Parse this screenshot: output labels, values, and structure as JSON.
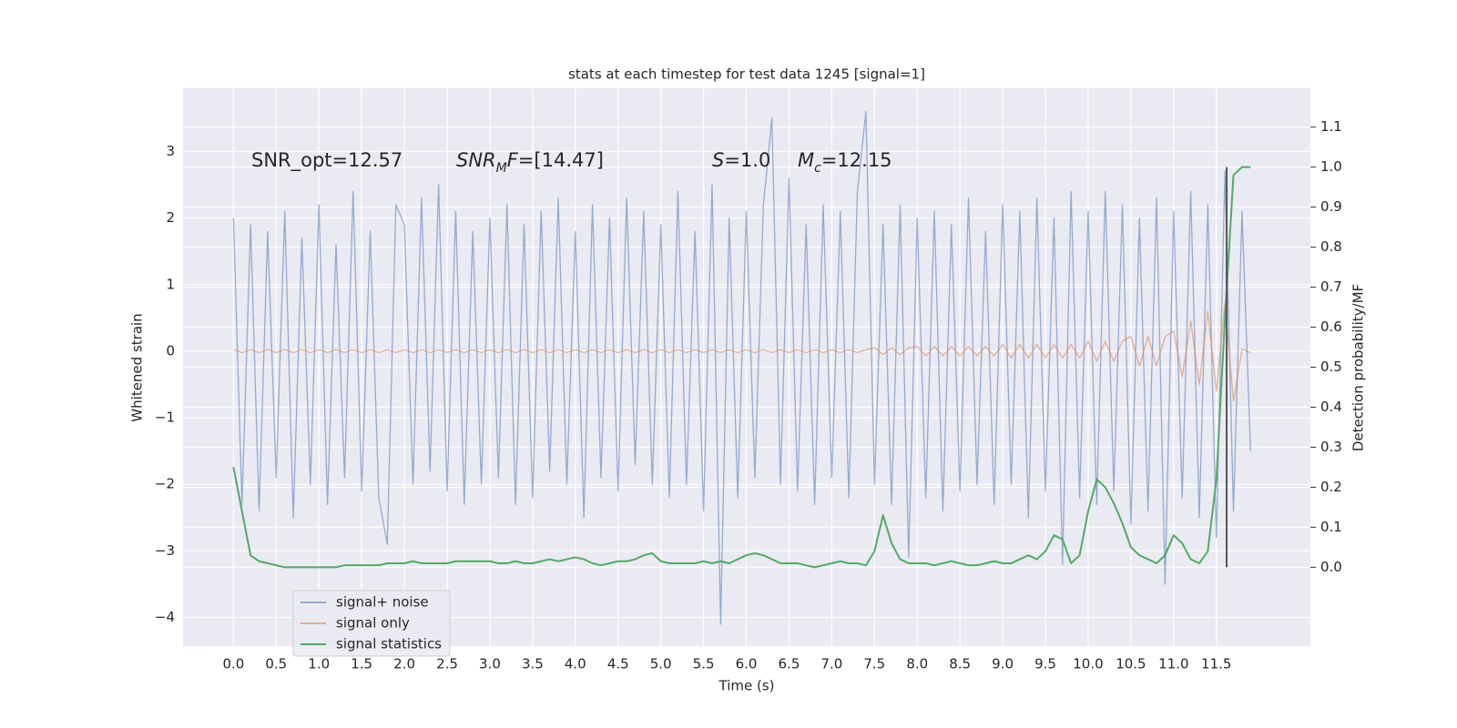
{
  "chart_data": {
    "type": "line",
    "title": "stats at each timestep for test data 1245 [signal=1]",
    "xlabel": "Time (s)",
    "ylabel": "Whitened strain",
    "y2label": "Detection probability/MF",
    "x": [
      0,
      0.1,
      0.2,
      0.3,
      0.4,
      0.5,
      0.6,
      0.7,
      0.8,
      0.9,
      1,
      1.1,
      1.2,
      1.3,
      1.4,
      1.5,
      1.6,
      1.7,
      1.8,
      1.9,
      2,
      2.1,
      2.2,
      2.3,
      2.4,
      2.5,
      2.6,
      2.7,
      2.8,
      2.9,
      3,
      3.1,
      3.2,
      3.3,
      3.4,
      3.5,
      3.6,
      3.7,
      3.8,
      3.9,
      4,
      4.1,
      4.2,
      4.3,
      4.4,
      4.5,
      4.6,
      4.7,
      4.8,
      4.9,
      5,
      5.1,
      5.2,
      5.3,
      5.4,
      5.5,
      5.6,
      5.7,
      5.8,
      5.9,
      6,
      6.1,
      6.2,
      6.3,
      6.4,
      6.5,
      6.6,
      6.7,
      6.8,
      6.9,
      7,
      7.1,
      7.2,
      7.3,
      7.4,
      7.5,
      7.6,
      7.7,
      7.8,
      7.9,
      8,
      8.1,
      8.2,
      8.3,
      8.4,
      8.5,
      8.6,
      8.7,
      8.8,
      8.9,
      9,
      9.1,
      9.2,
      9.3,
      9.4,
      9.5,
      9.6,
      9.7,
      9.8,
      9.9,
      10,
      10.1,
      10.2,
      10.3,
      10.4,
      10.5,
      10.6,
      10.7,
      10.8,
      10.9,
      11,
      11.1,
      11.2,
      11.3,
      11.4,
      11.5,
      11.6,
      11.7,
      11.8,
      11.9
    ],
    "series": [
      {
        "name": "signal+ noise",
        "color": "#4c72b0",
        "opacity": 0.55,
        "values": [
          2.0,
          -2.3,
          1.9,
          -2.4,
          1.8,
          -1.9,
          2.1,
          -2.5,
          1.7,
          -2.0,
          2.2,
          -2.3,
          1.6,
          -1.9,
          2.4,
          -2.1,
          1.8,
          -2.2,
          -2.9,
          2.2,
          1.9,
          -2.0,
          2.3,
          -1.8,
          2.5,
          -2.1,
          2.1,
          -2.3,
          1.8,
          -2.0,
          2.0,
          -1.9,
          2.2,
          -2.3,
          1.9,
          -2.2,
          2.1,
          -1.8,
          2.3,
          -2.0,
          1.8,
          -2.5,
          2.2,
          -1.9,
          2.0,
          -2.1,
          2.3,
          -1.7,
          2.1,
          -2.0,
          1.9,
          -2.2,
          2.4,
          -2.0,
          1.8,
          -2.4,
          2.5,
          -4.1,
          2.0,
          -2.2,
          2.1,
          -1.9,
          2.2,
          3.5,
          -2.0,
          2.6,
          -2.1,
          1.9,
          -2.3,
          2.2,
          -1.9,
          2.1,
          -2.2,
          2.4,
          3.6,
          -2.0,
          1.9,
          -2.3,
          2.2,
          -3.1,
          2.0,
          -2.2,
          2.1,
          -2.4,
          1.9,
          -2.1,
          2.3,
          -2.0,
          1.8,
          -2.3,
          2.2,
          -2.0,
          2.1,
          -2.5,
          2.3,
          -2.1,
          2.0,
          -3.2,
          2.4,
          -2.2,
          2.1,
          -2.3,
          2.4,
          -2.1,
          2.2,
          -2.6,
          2.0,
          -2.4,
          2.3,
          -3.5,
          2.1,
          -2.2,
          2.4,
          -2.5,
          2.2,
          -2.8,
          2.7,
          -2.4,
          2.1,
          -1.5
        ]
      },
      {
        "name": "signal only",
        "color": "#dd8452",
        "opacity": 0.6,
        "values": [
          0.02,
          -0.02,
          0.02,
          -0.02,
          0.02,
          -0.02,
          0.02,
          -0.02,
          0.02,
          -0.02,
          0.02,
          -0.02,
          0.02,
          -0.02,
          0.02,
          -0.02,
          0.02,
          -0.02,
          0.02,
          -0.02,
          0.02,
          -0.02,
          0.02,
          -0.02,
          0.02,
          -0.02,
          0.02,
          -0.02,
          0.02,
          -0.02,
          0.02,
          -0.02,
          0.02,
          -0.02,
          0.02,
          -0.02,
          0.02,
          -0.02,
          0.02,
          -0.02,
          0.02,
          -0.02,
          0.02,
          -0.02,
          0.02,
          -0.02,
          0.02,
          -0.02,
          0.02,
          -0.02,
          0.02,
          -0.02,
          0.02,
          -0.02,
          0.02,
          -0.02,
          0.02,
          -0.02,
          0.02,
          -0.02,
          0.02,
          -0.02,
          0.02,
          -0.02,
          0.02,
          -0.02,
          0.02,
          -0.02,
          0.02,
          -0.02,
          0.02,
          -0.02,
          0.02,
          -0.02,
          0.02,
          0.05,
          -0.05,
          0.05,
          -0.05,
          0.05,
          0.07,
          -0.07,
          0.07,
          -0.07,
          0.07,
          -0.07,
          0.07,
          -0.07,
          0.07,
          -0.07,
          0.1,
          -0.1,
          0.1,
          -0.1,
          0.1,
          -0.1,
          0.1,
          -0.1,
          0.1,
          -0.1,
          0.15,
          -0.15,
          0.15,
          -0.15,
          0.15,
          0.22,
          -0.22,
          0.22,
          -0.22,
          0.22,
          0.3,
          -0.38,
          0.45,
          -0.5,
          0.6,
          -0.6,
          0.72,
          -0.75,
          0.03,
          -0.02
        ]
      },
      {
        "name": "signal statistics",
        "color": "#55a868",
        "opacity": 1,
        "axis": "y2",
        "values": [
          0.25,
          0.14,
          0.03,
          0.015,
          0.01,
          0.005,
          0.0,
          0.0,
          0.0,
          0.0,
          0.0,
          0.0,
          0.0,
          0.005,
          0.005,
          0.005,
          0.005,
          0.005,
          0.01,
          0.01,
          0.01,
          0.015,
          0.01,
          0.01,
          0.01,
          0.01,
          0.015,
          0.015,
          0.015,
          0.015,
          0.015,
          0.01,
          0.01,
          0.015,
          0.01,
          0.01,
          0.015,
          0.02,
          0.015,
          0.02,
          0.025,
          0.02,
          0.01,
          0.005,
          0.01,
          0.015,
          0.015,
          0.02,
          0.03,
          0.035,
          0.015,
          0.01,
          0.01,
          0.01,
          0.01,
          0.015,
          0.01,
          0.015,
          0.01,
          0.02,
          0.03,
          0.035,
          0.03,
          0.02,
          0.01,
          0.01,
          0.01,
          0.005,
          0.0,
          0.005,
          0.01,
          0.015,
          0.01,
          0.01,
          0.005,
          0.04,
          0.13,
          0.06,
          0.02,
          0.01,
          0.01,
          0.01,
          0.005,
          0.01,
          0.015,
          0.01,
          0.005,
          0.005,
          0.01,
          0.015,
          0.01,
          0.01,
          0.02,
          0.03,
          0.02,
          0.04,
          0.08,
          0.07,
          0.01,
          0.03,
          0.14,
          0.22,
          0.2,
          0.16,
          0.11,
          0.05,
          0.03,
          0.02,
          0.01,
          0.03,
          0.08,
          0.06,
          0.02,
          0.01,
          0.04,
          0.22,
          0.62,
          0.98,
          1.0,
          1.0
        ]
      }
    ],
    "marker_line": {
      "x": 11.62,
      "y2": [
        0,
        1.0
      ],
      "color": "#555555"
    },
    "annotations": [
      [
        {
          "text": "SNR_opt=12.57"
        }
      ],
      [
        {
          "text": "SNR",
          "italic": true
        },
        {
          "text": "M",
          "italic": true,
          "subscript": true
        },
        {
          "text": "F",
          "italic": true
        },
        {
          "text": "=[14.47]"
        }
      ],
      [
        {
          "text": "S",
          "italic": true
        },
        {
          "text": "=1.0"
        }
      ],
      [
        {
          "text": "M",
          "italic": true
        },
        {
          "text": "c",
          "italic": true,
          "subscript": true
        },
        {
          "text": "=12.15"
        }
      ]
    ],
    "xlim": [
      -0.59,
      12.6
    ],
    "xticks": [
      {
        "value": 0,
        "label": "0.0"
      },
      0.5,
      {
        "value": 1,
        "label": "1.0"
      },
      1.5,
      {
        "value": 2,
        "label": "2.0"
      },
      2.5,
      {
        "value": 3,
        "label": "3.0"
      },
      3.5,
      {
        "value": 4,
        "label": "4.0"
      },
      4.5,
      {
        "value": 5,
        "label": "5.0"
      },
      5.5,
      {
        "value": 6,
        "label": "6.0"
      },
      6.5,
      {
        "value": 7,
        "label": "7.0"
      },
      7.5,
      {
        "value": 8,
        "label": "8.0"
      },
      8.5,
      {
        "value": 9,
        "label": "9.0"
      },
      9.5,
      {
        "value": 10,
        "label": "10.0"
      },
      10.5,
      {
        "value": 11,
        "label": "11.0"
      },
      11.5
    ],
    "ylim": [
      -4.43,
      3.95
    ],
    "yticks": [
      {
        "value": -4,
        "label": "−4"
      },
      {
        "value": -3,
        "label": "−3"
      },
      {
        "value": -2,
        "label": "−2"
      },
      {
        "value": -1,
        "label": "−1"
      },
      0,
      1,
      2,
      3
    ],
    "y2lim": [
      -0.197,
      1.197
    ],
    "y2ticks": [
      {
        "value": 0,
        "label": "0.0"
      },
      0.1,
      0.2,
      0.3,
      0.4,
      0.5,
      0.6,
      0.7,
      0.8,
      0.9,
      {
        "value": 1,
        "label": "1.0"
      },
      1.1
    ],
    "grid": true,
    "legend": "lower left",
    "background": "#eaeaf2"
  }
}
